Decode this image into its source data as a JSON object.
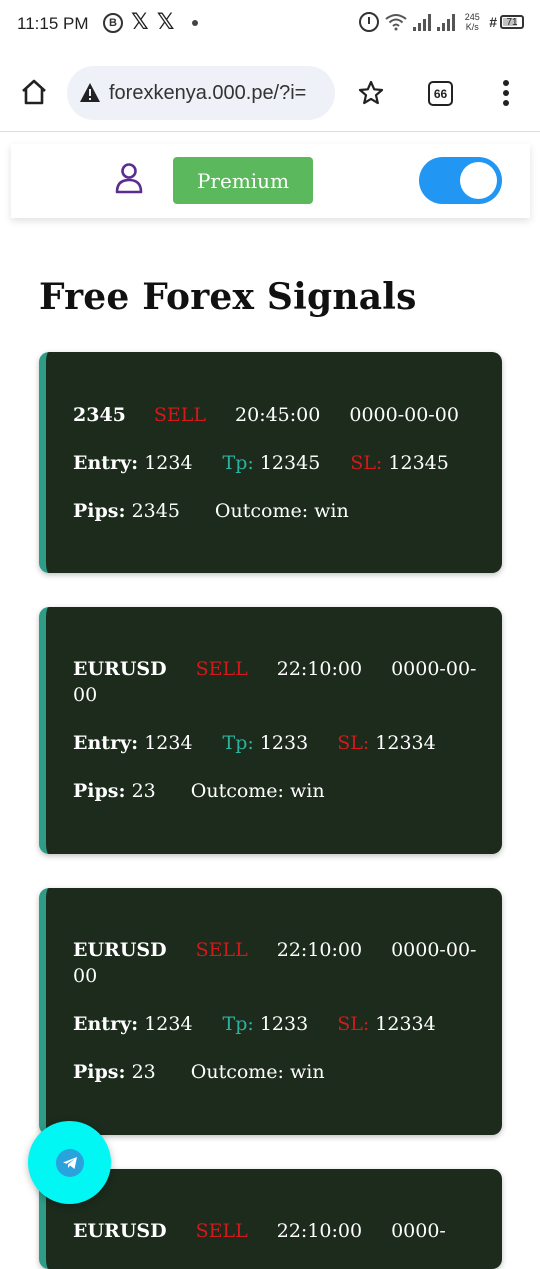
{
  "status_bar": {
    "time": "11:15 PM",
    "left_icons": [
      "bitcoin-b-icon",
      "x-icon",
      "x-icon",
      "dot-icon"
    ],
    "net_speed_value": "245",
    "net_speed_unit": "K/s",
    "battery": "71"
  },
  "browser": {
    "url": "forexkenya.000.pe/?i=",
    "tab_count": "66"
  },
  "header": {
    "premium_label": "Premium",
    "toggle_on": true,
    "toggle_color": "#2196f3",
    "premium_color": "#5cb85c"
  },
  "page": {
    "title": "Free Forex Signals"
  },
  "labels": {
    "entry": "Entry:",
    "tp": "Tp:",
    "sl": "SL:",
    "pips": "Pips:",
    "outcome": "Outcome:"
  },
  "signals": [
    {
      "pair": "2345",
      "action": "SELL",
      "time": "20:45:00",
      "date": "0000-00-00",
      "entry": "1234",
      "tp": "12345",
      "sl": "12345",
      "pips": "2345",
      "outcome": "win"
    },
    {
      "pair": "EURUSD",
      "action": "SELL",
      "time": "22:10:00",
      "date": "0000-00-00",
      "entry": "1234",
      "tp": "1233",
      "sl": "12334",
      "pips": "23",
      "outcome": "win"
    },
    {
      "pair": "EURUSD",
      "action": "SELL",
      "time": "22:10:00",
      "date": "0000-00-00",
      "entry": "1234",
      "tp": "1233",
      "sl": "12334",
      "pips": "23",
      "outcome": "win"
    },
    {
      "pair": "EURUSD",
      "action": "SELL",
      "time": "22:10:00",
      "date": "0000-"
    }
  ],
  "colors": {
    "card_bg": "#1c2b1c",
    "card_accent": "#2e9c87",
    "sell": "#d21a1a",
    "tp": "#2ab3a0",
    "fab": "#00f7f3"
  },
  "fab_icon": "telegram-icon"
}
